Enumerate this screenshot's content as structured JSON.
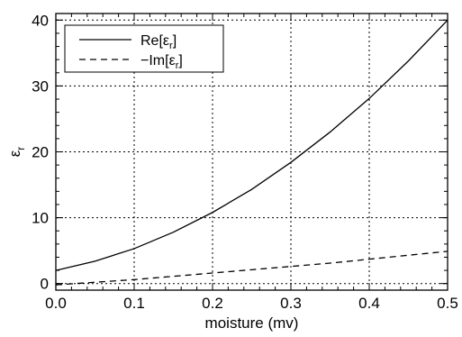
{
  "chart_data": {
    "type": "line",
    "xlabel": "moisture (mv)",
    "ylabel": "εr",
    "xlim": [
      0.0,
      0.5
    ],
    "ylim": [
      -1,
      41
    ],
    "x_ticks": [
      "0.0",
      "0.1",
      "0.2",
      "0.3",
      "0.4",
      "0.5"
    ],
    "y_ticks": [
      "0",
      "10",
      "20",
      "30",
      "40"
    ],
    "grid": true,
    "legend_position": "top-left",
    "x": [
      0.0,
      0.05,
      0.1,
      0.15,
      0.2,
      0.25,
      0.3,
      0.35,
      0.4,
      0.45,
      0.5
    ],
    "series": [
      {
        "name": "Re[εr]",
        "line_style": "solid",
        "values": [
          2.0,
          3.4,
          5.3,
          7.8,
          10.8,
          14.3,
          18.4,
          23.0,
          28.1,
          33.8,
          40.0
        ]
      },
      {
        "name": "−Im[εr]",
        "line_style": "dashed",
        "values": [
          -0.2,
          0.2,
          0.6,
          1.1,
          1.6,
          2.1,
          2.6,
          3.1,
          3.7,
          4.3,
          4.9
        ]
      }
    ]
  }
}
